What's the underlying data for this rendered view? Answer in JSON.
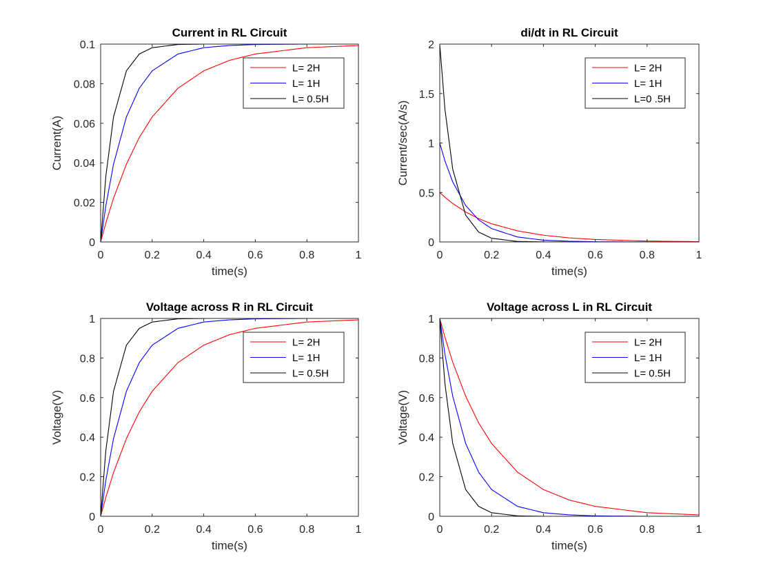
{
  "chart_data": [
    {
      "type": "line",
      "title": "Current in RL Circuit",
      "xlabel": "time(s)",
      "ylabel": "Current(A)",
      "xlim": [
        0,
        1
      ],
      "ylim": [
        0,
        0.1
      ],
      "xticks": [
        "0",
        "0.2",
        "0.4",
        "0.6",
        "0.8",
        "1"
      ],
      "yticks": [
        "0",
        "0.02",
        "0.04",
        "0.06",
        "0.08",
        "0.1"
      ],
      "x": [
        0,
        0.02,
        0.05,
        0.1,
        0.15,
        0.2,
        0.3,
        0.4,
        0.5,
        0.6,
        0.8,
        1.0
      ],
      "series": [
        {
          "name": "L= 2H",
          "color": "#ff0000",
          "values": [
            0,
            0.0095,
            0.0221,
            0.0393,
            0.0528,
            0.0632,
            0.0777,
            0.0865,
            0.0918,
            0.095,
            0.0982,
            0.0993
          ]
        },
        {
          "name": "L= 1H",
          "color": "#0000ff",
          "values": [
            0,
            0.0181,
            0.0393,
            0.0632,
            0.0777,
            0.0865,
            0.095,
            0.0982,
            0.0993,
            0.0998,
            0.1,
            0.1
          ]
        },
        {
          "name": "L= 0.5H",
          "color": "#000000",
          "values": [
            0,
            0.033,
            0.0632,
            0.0865,
            0.095,
            0.0982,
            0.0998,
            0.1,
            0.1,
            0.1,
            0.1,
            0.1
          ]
        }
      ],
      "legend_position": "top-right"
    },
    {
      "type": "line",
      "title": "di/dt in RL Circuit",
      "xlabel": "time(s)",
      "ylabel": "Current/sec(A/s)",
      "xlim": [
        0,
        1
      ],
      "ylim": [
        0,
        2
      ],
      "xticks": [
        "0",
        "0.2",
        "0.4",
        "0.6",
        "0.8",
        "1"
      ],
      "yticks": [
        "0",
        "0.5",
        "1",
        "1.5",
        "2"
      ],
      "x": [
        0,
        0.02,
        0.05,
        0.1,
        0.15,
        0.2,
        0.3,
        0.4,
        0.5,
        0.6,
        0.8,
        1.0
      ],
      "series": [
        {
          "name": "L= 2H",
          "color": "#ff0000",
          "values": [
            0.5,
            0.452,
            0.389,
            0.303,
            0.236,
            0.184,
            0.112,
            0.068,
            0.041,
            0.025,
            0.009,
            0.003
          ]
        },
        {
          "name": "L= 1H",
          "color": "#0000ff",
          "values": [
            1.0,
            0.819,
            0.607,
            0.368,
            0.223,
            0.135,
            0.05,
            0.018,
            0.007,
            0.002,
            0.0,
            0.0
          ]
        },
        {
          "name": "L=0 .5H",
          "color": "#000000",
          "values": [
            2.0,
            1.341,
            0.736,
            0.271,
            0.1,
            0.037,
            0.005,
            0.001,
            0.0,
            0.0,
            0.0,
            0.0
          ]
        }
      ],
      "legend_position": "top-right"
    },
    {
      "type": "line",
      "title": "Voltage across R in RL Circuit",
      "xlabel": "time(s)",
      "ylabel": "Voltage(V)",
      "xlim": [
        0,
        1
      ],
      "ylim": [
        0,
        1
      ],
      "xticks": [
        "0",
        "0.2",
        "0.4",
        "0.6",
        "0.8",
        "1"
      ],
      "yticks": [
        "0",
        "0.2",
        "0.4",
        "0.6",
        "0.8",
        "1"
      ],
      "x": [
        0,
        0.02,
        0.05,
        0.1,
        0.15,
        0.2,
        0.3,
        0.4,
        0.5,
        0.6,
        0.8,
        1.0
      ],
      "series": [
        {
          "name": "L= 2H",
          "color": "#ff0000",
          "values": [
            0,
            0.095,
            0.221,
            0.393,
            0.528,
            0.632,
            0.777,
            0.865,
            0.918,
            0.95,
            0.982,
            0.993
          ]
        },
        {
          "name": "L= 1H",
          "color": "#0000ff",
          "values": [
            0,
            0.181,
            0.393,
            0.632,
            0.777,
            0.865,
            0.95,
            0.982,
            0.993,
            0.998,
            1.0,
            1.0
          ]
        },
        {
          "name": "L= 0.5H",
          "color": "#000000",
          "values": [
            0,
            0.33,
            0.632,
            0.865,
            0.95,
            0.982,
            0.998,
            1.0,
            1.0,
            1.0,
            1.0,
            1.0
          ]
        }
      ],
      "legend_position": "top-right"
    },
    {
      "type": "line",
      "title": "Voltage across L in RL Circuit",
      "xlabel": "time(s)",
      "ylabel": "Voltage(V)",
      "xlim": [
        0,
        1
      ],
      "ylim": [
        0,
        1
      ],
      "xticks": [
        "0",
        "0.2",
        "0.4",
        "0.6",
        "0.8",
        "1"
      ],
      "yticks": [
        "0",
        "0.2",
        "0.4",
        "0.6",
        "0.8",
        "1"
      ],
      "x": [
        0,
        0.02,
        0.05,
        0.1,
        0.15,
        0.2,
        0.3,
        0.4,
        0.5,
        0.6,
        0.8,
        1.0
      ],
      "series": [
        {
          "name": "L= 2H",
          "color": "#ff0000",
          "values": [
            1.0,
            0.905,
            0.779,
            0.607,
            0.472,
            0.368,
            0.223,
            0.135,
            0.082,
            0.05,
            0.018,
            0.007
          ]
        },
        {
          "name": "L= 1H",
          "color": "#0000ff",
          "values": [
            1.0,
            0.819,
            0.607,
            0.368,
            0.223,
            0.135,
            0.05,
            0.018,
            0.007,
            0.002,
            0.0,
            0.0
          ]
        },
        {
          "name": "L= 0.5H",
          "color": "#000000",
          "values": [
            1.0,
            0.67,
            0.368,
            0.135,
            0.05,
            0.018,
            0.002,
            0.0,
            0.0,
            0.0,
            0.0,
            0.0
          ]
        }
      ],
      "legend_position": "top-right"
    }
  ]
}
